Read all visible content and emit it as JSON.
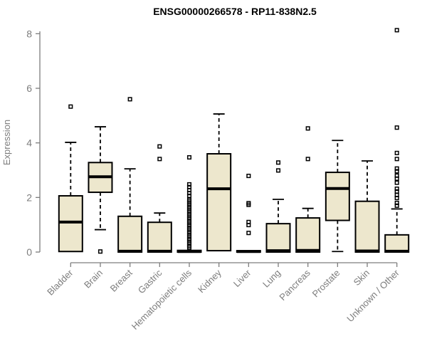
{
  "chart_data": {
    "type": "boxplot",
    "title": "ENSG00000266578 - RP11-838N2.5",
    "ylabel": "Expression",
    "yticks": [
      0,
      2,
      4,
      6,
      8
    ],
    "ylim": [
      0,
      8.2
    ],
    "grid": false,
    "colors": {
      "box_fill": "#ede7cd",
      "box_stroke": "#000000",
      "axis": "#7d7d7d",
      "tick_text": "#7d7d7d",
      "title_text": "#000000"
    },
    "categories": [
      "Bladder",
      "Brain",
      "Breast",
      "Gastric",
      "Hematopoietic cells",
      "Kidney",
      "Liver",
      "Lung",
      "Pancreas",
      "Prostate",
      "Skin",
      "Unknown / Other"
    ],
    "boxes": [
      {
        "label": "Bladder",
        "q1": 0.02,
        "median": 1.1,
        "q3": 2.06,
        "whisker_low": 0.02,
        "whisker_high": 4.02,
        "outliers": [
          5.33
        ]
      },
      {
        "label": "Brain",
        "q1": 2.19,
        "median": 2.76,
        "q3": 3.28,
        "whisker_low": 0.82,
        "whisker_high": 4.59,
        "outliers": [
          0.02
        ]
      },
      {
        "label": "Breast",
        "q1": 0.0,
        "median": 0.03,
        "q3": 1.31,
        "whisker_low": 0.0,
        "whisker_high": 3.05,
        "outliers": [
          5.6
        ]
      },
      {
        "label": "Gastric",
        "q1": 0.0,
        "median": 0.03,
        "q3": 1.09,
        "whisker_low": 0.0,
        "whisker_high": 1.43,
        "outliers": [
          3.41,
          3.87
        ]
      },
      {
        "label": "Hematopoietic cells",
        "q1": 0.0,
        "median": 0.02,
        "q3": 0.06,
        "whisker_low": 0.0,
        "whisker_high": 0.06,
        "outliers": [
          0.16,
          0.22,
          0.29,
          0.35,
          0.42,
          0.48,
          0.55,
          0.61,
          0.68,
          0.74,
          0.81,
          0.87,
          0.94,
          1.0,
          1.07,
          1.13,
          1.2,
          1.26,
          1.33,
          1.39,
          1.46,
          1.52,
          1.59,
          1.65,
          1.72,
          1.78,
          1.85,
          1.91,
          2.06,
          2.16,
          2.27,
          2.38,
          2.48,
          3.47
        ]
      },
      {
        "label": "Kidney",
        "q1": 0.05,
        "median": 2.32,
        "q3": 3.6,
        "whisker_low": 0.05,
        "whisker_high": 5.06,
        "outliers": []
      },
      {
        "label": "Liver",
        "q1": 0.0,
        "median": 0.02,
        "q3": 0.05,
        "whisker_low": 0.0,
        "whisker_high": 0.05,
        "outliers": [
          0.7,
          0.99,
          1.1,
          1.73,
          1.79,
          2.79
        ]
      },
      {
        "label": "Lung",
        "q1": 0.0,
        "median": 0.05,
        "q3": 1.04,
        "whisker_low": 0.0,
        "whisker_high": 1.93,
        "outliers": [
          2.99,
          3.28
        ]
      },
      {
        "label": "Pancreas",
        "q1": 0.0,
        "median": 0.06,
        "q3": 1.25,
        "whisker_low": 0.0,
        "whisker_high": 1.6,
        "outliers": [
          3.41,
          4.53
        ]
      },
      {
        "label": "Prostate",
        "q1": 1.16,
        "median": 2.33,
        "q3": 2.92,
        "whisker_low": 0.02,
        "whisker_high": 4.09,
        "outliers": []
      },
      {
        "label": "Skin",
        "q1": 0.0,
        "median": 0.04,
        "q3": 1.86,
        "whisker_low": 0.0,
        "whisker_high": 3.34,
        "outliers": []
      },
      {
        "label": "Unknown / Other",
        "q1": 0.0,
        "median": 0.03,
        "q3": 0.63,
        "whisker_low": 0.0,
        "whisker_high": 1.58,
        "outliers": [
          1.7,
          1.8,
          1.98,
          2.09,
          2.22,
          2.32,
          2.54,
          2.69,
          2.8,
          2.96,
          3.06,
          3.41,
          3.63,
          4.56,
          8.13
        ]
      }
    ]
  }
}
